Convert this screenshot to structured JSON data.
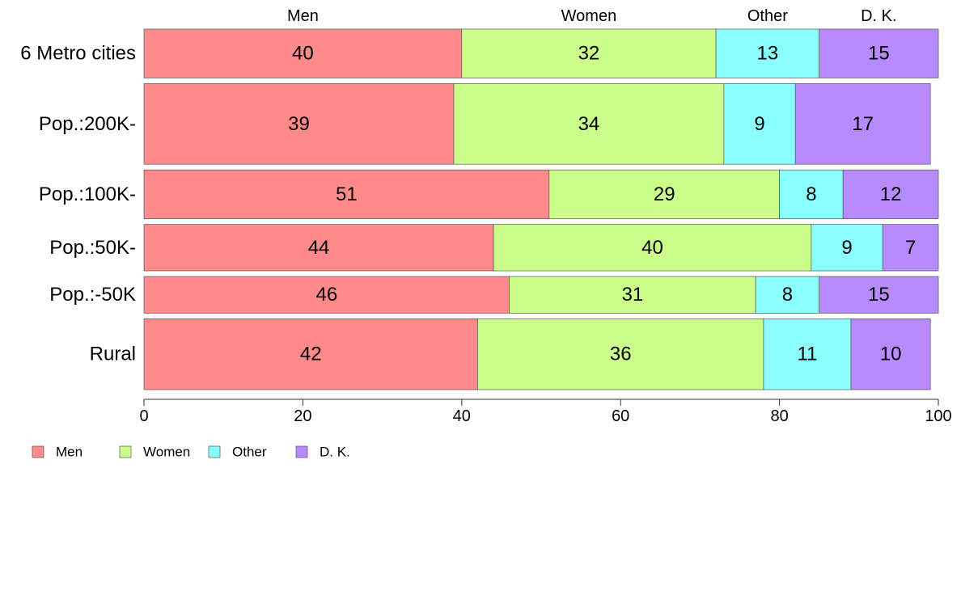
{
  "chart_data": {
    "type": "bar",
    "orientation": "horizontal",
    "stacked": true,
    "categories": [
      "6 Metro cities",
      "Pop.:200K-",
      "Pop.:100K-",
      "Pop.:50K-",
      "Pop.:-50K",
      "Rural"
    ],
    "series": [
      {
        "name": "Men",
        "color": "#FF8A8A",
        "values": [
          40,
          39,
          51,
          44,
          46,
          42
        ]
      },
      {
        "name": "Women",
        "color": "#CCFF8A",
        "values": [
          32,
          34,
          29,
          40,
          31,
          36
        ]
      },
      {
        "name": "Other",
        "color": "#8AFFFF",
        "values": [
          13,
          9,
          8,
          9,
          8,
          11
        ]
      },
      {
        "name": "D. K.",
        "color": "#B88AFF",
        "values": [
          15,
          17,
          12,
          7,
          15,
          10
        ]
      }
    ],
    "row_weights": [
      1.0,
      1.65,
      1.0,
      0.95,
      0.75,
      1.45
    ],
    "xlim": [
      0,
      100
    ],
    "xticks": [
      0,
      20,
      40,
      60,
      80,
      100
    ],
    "xlabel": "",
    "ylabel": "",
    "title": "",
    "grid": false,
    "legend": "bottom-left",
    "series_headers_on_top": true,
    "data_labels": true
  }
}
